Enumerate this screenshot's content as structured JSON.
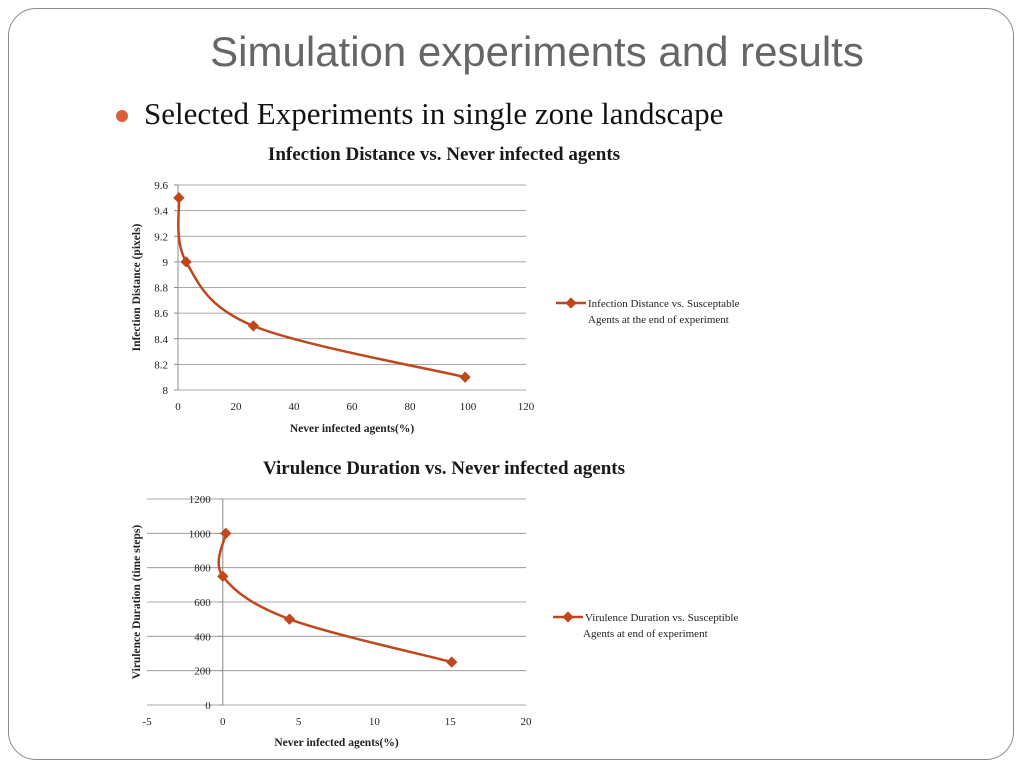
{
  "slide": {
    "title": "Simulation experiments and results",
    "bullet": "Selected Experiments in single zone landscape"
  },
  "colors": {
    "series": "#c0461c",
    "grid": "#8c8c8c",
    "bullet": "#d9603b"
  },
  "chart_data": [
    {
      "type": "scatter",
      "title": "Infection Distance vs. Never infected agents",
      "xlabel": "Never infected agents(%)",
      "ylabel": "Infection Distance (pixels)",
      "xlim": [
        0,
        120
      ],
      "ylim": [
        8,
        9.6
      ],
      "xticks": [
        0,
        20,
        40,
        60,
        80,
        100,
        120
      ],
      "yticks": [
        8,
        8.2,
        8.4,
        8.6,
        8.8,
        9,
        9.2,
        9.4,
        9.6
      ],
      "ytick_labels": [
        "8",
        "8.2",
        "8.4",
        "8.6",
        "8.8",
        "9",
        "9.2",
        "9.4",
        "9.6"
      ],
      "grid": "horizontal",
      "legend_position": "right",
      "series": [
        {
          "name": "Infection Distance vs. Susceptable Agents at the end of experiment",
          "legend_lines": [
            "Infection Distance vs. Susceptable",
            "Agents at the end of experiment"
          ],
          "x": [
            0.3,
            2.8,
            26,
            99
          ],
          "y": [
            9.5,
            9.0,
            8.5,
            8.1
          ]
        }
      ]
    },
    {
      "type": "scatter",
      "title": "Virulence Duration vs. Never infected agents",
      "xlabel": "Never infected agents(%)",
      "ylabel": "Virulence Duration (time steps)",
      "xlim": [
        -5,
        20
      ],
      "ylim": [
        0,
        1200
      ],
      "xticks": [
        -5,
        0,
        5,
        10,
        15,
        20
      ],
      "yticks": [
        0,
        200,
        400,
        600,
        800,
        1000,
        1200
      ],
      "ytick_labels": [
        "0",
        "200",
        "400",
        "600",
        "800",
        "1000",
        "1200"
      ],
      "grid": "horizontal",
      "legend_position": "right",
      "series": [
        {
          "name": "Virulence Duration vs. Susceptible Agents at end of experiment",
          "legend_lines": [
            "Virulence Duration vs. Susceptible",
            "Agents at end of experiment"
          ],
          "x": [
            0.2,
            0,
            4.4,
            15.1
          ],
          "y": [
            1000,
            750,
            500,
            250
          ]
        }
      ]
    }
  ]
}
